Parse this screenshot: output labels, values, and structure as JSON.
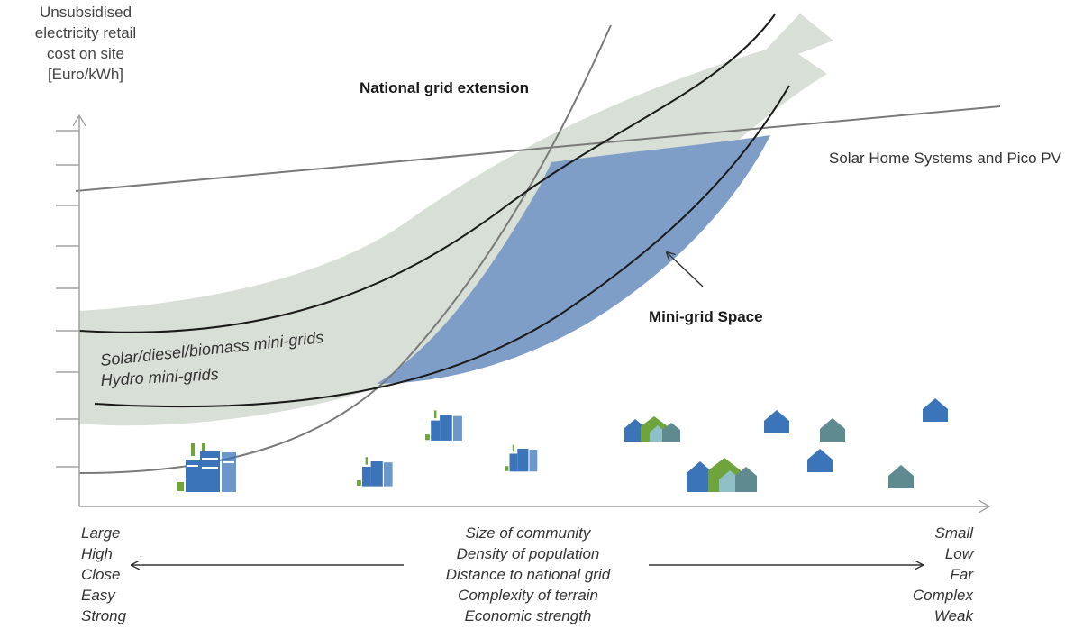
{
  "y_axis_label": [
    "Unsubsidised",
    "electricity retail",
    "cost on site",
    "[Euro/kWh]"
  ],
  "labels": {
    "national_grid": "National grid extension",
    "solar_home": "Solar Home Systems and Pico PV",
    "mini_grid_space": "Mini-grid Space",
    "solar_diesel": "Solar/diesel/biomass mini-grids",
    "hydro": "Hydro mini-grids"
  },
  "x_axis": {
    "left": [
      "Large",
      "High",
      "Close",
      "Easy",
      "Strong"
    ],
    "center": [
      "Size of community",
      "Density of population",
      "Distance to national grid",
      "Complexity of terrain",
      "Economic strength"
    ],
    "right": [
      "Small",
      "Low",
      "Far",
      "Complex",
      "Weak"
    ]
  },
  "colors": {
    "mini_grid_band": "#d8dfd6",
    "mini_grid_space": "#7f9ec7",
    "curve": "#1a1a1a",
    "grid_line": "#808080",
    "building_blue": "#3b74b8",
    "building_green": "#6fa33c",
    "house_blue": "#3b74b8",
    "house_teal": "#5f8a8f",
    "house_green": "#6fa33c",
    "house_light": "#8fc0c8"
  },
  "icons": [
    "city-building-icon",
    "house-icon"
  ]
}
